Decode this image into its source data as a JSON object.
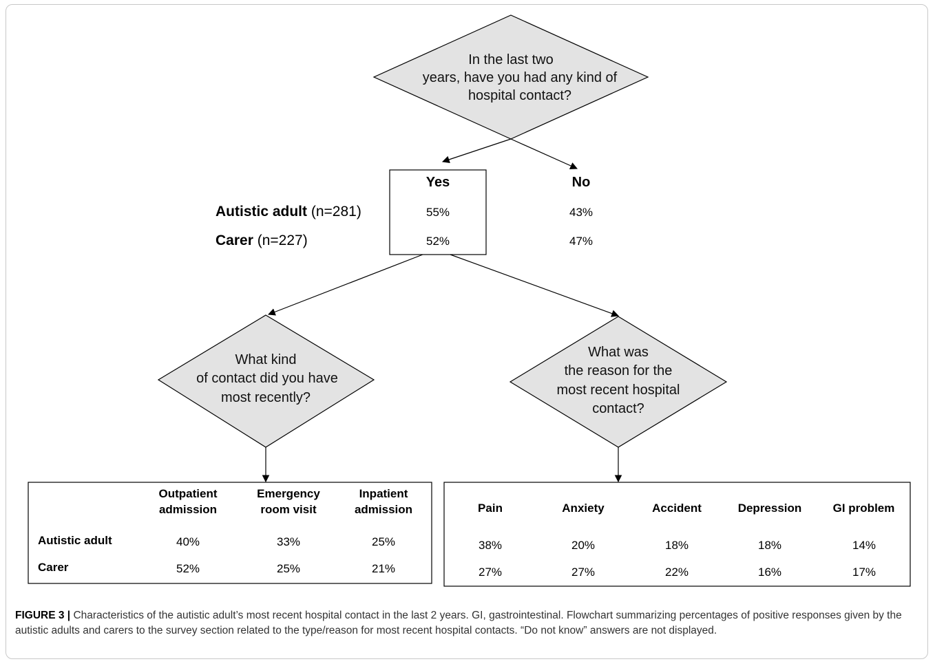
{
  "diagram": {
    "top_question": [
      "In the last two",
      "years, have you had any kind of",
      "hospital contact?"
    ],
    "answer_box": {
      "yes_label": "Yes",
      "no_label": "No",
      "rows": [
        {
          "label_bold": "Autistic adult",
          "label_rest": "(n=281)",
          "yes": "55%",
          "no": "43%"
        },
        {
          "label_bold": "Carer",
          "label_rest": "(n=227)",
          "yes": "52%",
          "no": "47%"
        }
      ]
    },
    "left_question": [
      "What kind",
      "of contact did you have",
      "most recently?"
    ],
    "right_question": [
      "What was",
      "the reason for the",
      "most recent hospital",
      "contact?"
    ],
    "contact_table": {
      "headers": [
        [
          "Outpatient",
          "admission"
        ],
        [
          "Emergency",
          "room visit"
        ],
        [
          "Inpatient",
          "admission"
        ]
      ],
      "rows": [
        {
          "label": "Autistic adult",
          "values": [
            "40%",
            "33%",
            "25%"
          ]
        },
        {
          "label": "Carer",
          "values": [
            "52%",
            "25%",
            "21%"
          ]
        }
      ]
    },
    "reason_table": {
      "headers": [
        "Pain",
        "Anxiety",
        "Accident",
        "Depression",
        "GI problem"
      ],
      "rows": [
        {
          "values": [
            "38%",
            "20%",
            "18%",
            "18%",
            "14%"
          ]
        },
        {
          "values": [
            "27%",
            "27%",
            "22%",
            "16%",
            "17%"
          ]
        }
      ]
    }
  },
  "caption": {
    "figure_label": "FIGURE 3 |",
    "text": "Characteristics of the autistic adult’s most recent hospital contact in the last 2 years. GI, gastrointestinal. Flowchart summarizing percentages of positive responses given by the autistic adults and carers to the survey section related to the type/reason for most recent hospital contacts. “Do not know” answers are not displayed."
  }
}
